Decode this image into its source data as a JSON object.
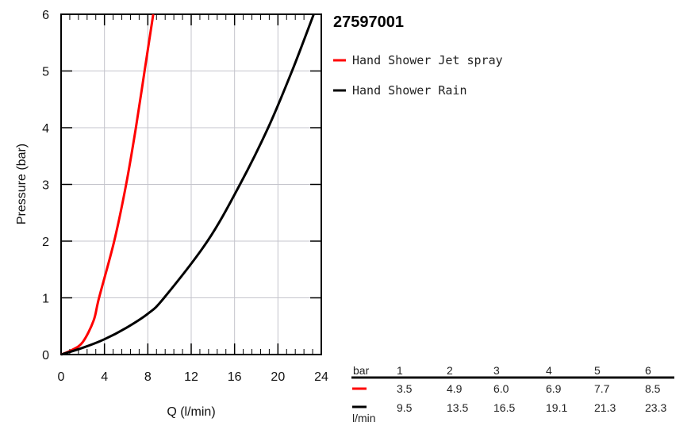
{
  "chart_data": {
    "type": "line",
    "title": "27597001",
    "xlabel": "Q (l/min)",
    "ylabel": "Pressure (bar)",
    "xlim": [
      0,
      24
    ],
    "ylim": [
      0,
      6
    ],
    "xticks": [
      "0",
      "4",
      "8",
      "12",
      "16",
      "20",
      "24"
    ],
    "yticks": [
      "0",
      "1",
      "2",
      "3",
      "4",
      "5",
      "6"
    ],
    "grid": true,
    "legend_position": "right",
    "series": [
      {
        "name": "Hand Shower Jet spray",
        "color": "#ff0000",
        "x": [
          0,
          1,
          2,
          3,
          3.5,
          4.9,
          6.0,
          6.9,
          7.7,
          8.5
        ],
        "y": [
          0,
          0.08,
          0.22,
          0.6,
          1,
          2,
          3,
          4,
          5,
          6
        ]
      },
      {
        "name": "Hand Shower Rain",
        "color": "#000000",
        "x": [
          0,
          2,
          4,
          6,
          8,
          9.5,
          13.5,
          16.5,
          19.1,
          21.3,
          23.3
        ],
        "y": [
          0,
          0.12,
          0.27,
          0.47,
          0.72,
          1,
          2,
          3,
          4,
          5,
          6
        ]
      }
    ],
    "table": {
      "header_label": "bar",
      "unit_label": "l/min",
      "columns": [
        "1",
        "2",
        "3",
        "4",
        "5",
        "6"
      ],
      "rows": [
        {
          "color": "#ff0000",
          "values": [
            "3.5",
            "4.9",
            "6.0",
            "6.9",
            "7.7",
            "8.5"
          ]
        },
        {
          "color": "#000000",
          "values": [
            "9.5",
            "13.5",
            "16.5",
            "19.1",
            "21.3",
            "23.3"
          ]
        }
      ]
    }
  }
}
